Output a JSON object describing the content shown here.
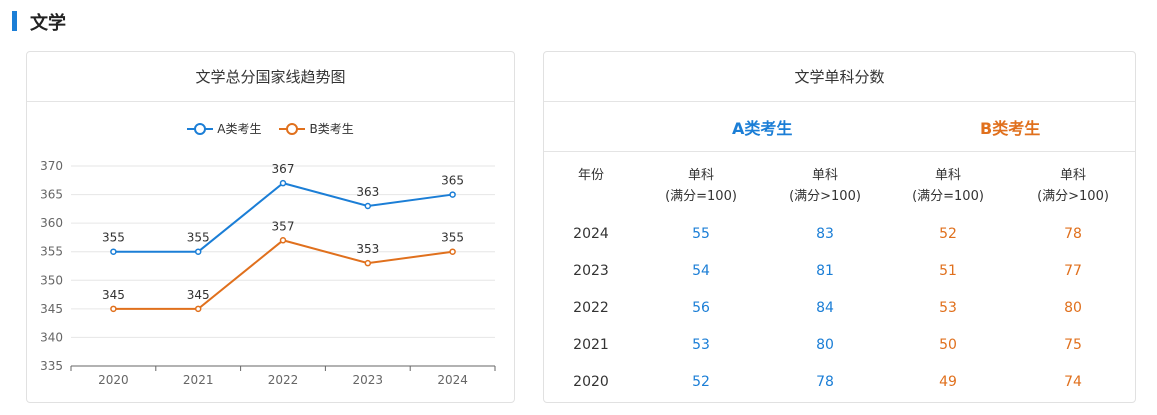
{
  "section": {
    "title": "文学"
  },
  "left_panel": {
    "title": "文学总分国家线趋势图"
  },
  "right_panel": {
    "title": "文学单科分数",
    "group_a": "A类考生",
    "group_b": "B类考生",
    "columns": [
      "年份",
      "单科\n(满分=100)",
      "单科\n(满分>100)",
      "单科\n(满分=100)",
      "单科\n(满分>100)"
    ],
    "rows": [
      [
        "2024",
        "55",
        "83",
        "52",
        "78"
      ],
      [
        "2023",
        "54",
        "81",
        "51",
        "77"
      ],
      [
        "2022",
        "56",
        "84",
        "53",
        "80"
      ],
      [
        "2021",
        "53",
        "80",
        "50",
        "75"
      ],
      [
        "2020",
        "52",
        "78",
        "49",
        "74"
      ]
    ]
  },
  "chart_data": {
    "type": "line",
    "title": "文学总分国家线趋势图",
    "categories": [
      "2020",
      "2021",
      "2022",
      "2023",
      "2024"
    ],
    "series": [
      {
        "name": "A类考生",
        "values": [
          355,
          355,
          367,
          363,
          365
        ],
        "color": "#1b7ed6"
      },
      {
        "name": "B类考生",
        "values": [
          345,
          345,
          357,
          353,
          355
        ],
        "color": "#e0701d"
      }
    ],
    "yticks": [
      335,
      340,
      345,
      350,
      355,
      360,
      365,
      370
    ],
    "ylim": [
      335,
      370
    ],
    "grid": true,
    "legend": "top-center"
  }
}
